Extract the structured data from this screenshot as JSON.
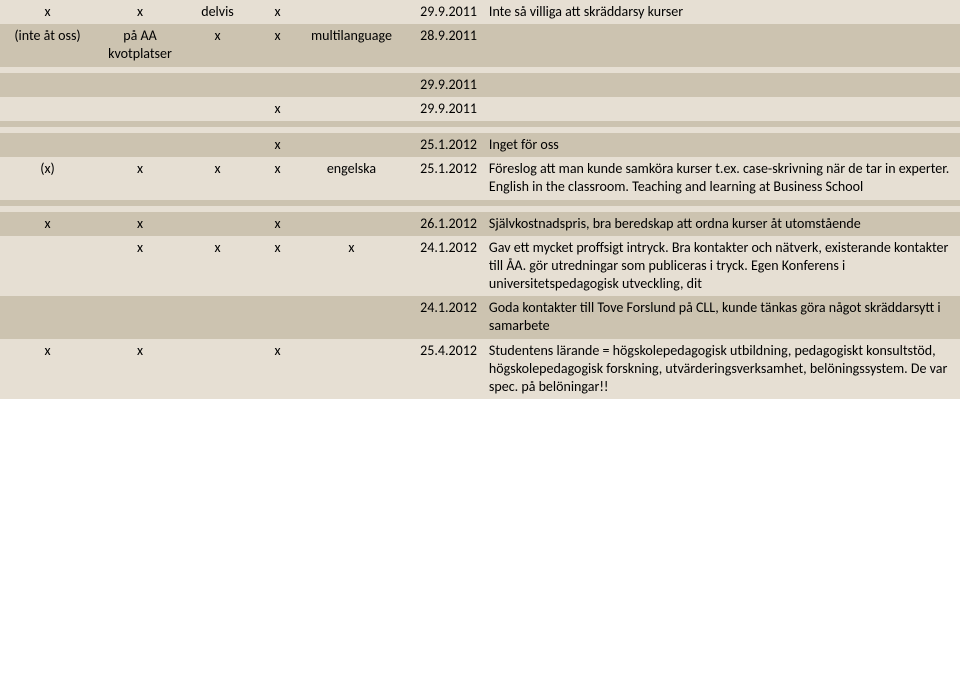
{
  "rows": [
    {
      "parity": "even",
      "c1": "x",
      "c2": "x",
      "c3": "delvis",
      "c4": "x",
      "c5": "",
      "c6": "29.9.2011",
      "c7": "Inte så villiga att skräddarsy kurser"
    },
    {
      "parity": "odd",
      "c1": "(inte åt oss)",
      "c2": "på AA kvotplatser",
      "c3": "x",
      "c4": "x",
      "c5": "multilanguage",
      "c6": "28.9.2011",
      "c7": ""
    },
    {
      "parity": "even",
      "c1": "",
      "c2": "",
      "c3": "",
      "c4": "",
      "c5": "",
      "c6": "",
      "c7": ""
    },
    {
      "parity": "odd",
      "c1": "",
      "c2": "",
      "c3": "",
      "c4": "",
      "c5": "",
      "c6": "29.9.2011",
      "c7": ""
    },
    {
      "parity": "even",
      "c1": "",
      "c2": "",
      "c3": "",
      "c4": "x",
      "c5": "",
      "c6": "29.9.2011",
      "c7": ""
    },
    {
      "parity": "odd",
      "c1": "",
      "c2": "",
      "c3": "",
      "c4": "",
      "c5": "",
      "c6": "",
      "c7": ""
    },
    {
      "parity": "even",
      "c1": "",
      "c2": "",
      "c3": "",
      "c4": "",
      "c5": "",
      "c6": "",
      "c7": ""
    },
    {
      "parity": "odd",
      "c1": "",
      "c2": "",
      "c3": "",
      "c4": "x",
      "c5": "",
      "c6": "25.1.2012",
      "c7": "Inget för oss"
    },
    {
      "parity": "even",
      "c1": "(x)",
      "c2": "x",
      "c3": "x",
      "c4": "x",
      "c5": "engelska",
      "c6": "25.1.2012",
      "c7": "Föreslog att man kunde samköra kurser t.ex. case-skrivning när de tar in experter. English in the classroom. Teaching and learning at Business School"
    },
    {
      "parity": "odd",
      "c1": "",
      "c2": "",
      "c3": "",
      "c4": "",
      "c5": "",
      "c6": "",
      "c7": ""
    },
    {
      "parity": "even",
      "c1": "",
      "c2": "",
      "c3": "",
      "c4": "",
      "c5": "",
      "c6": "",
      "c7": ""
    },
    {
      "parity": "odd",
      "c1": "x",
      "c2": "x",
      "c3": "",
      "c4": "x",
      "c5": "",
      "c6": "26.1.2012",
      "c7": "Självkostnadspris, bra beredskap att ordna kurser åt utomstående"
    },
    {
      "parity": "even",
      "c1": "",
      "c2": "x",
      "c3": "x",
      "c4": "x",
      "c5": "x",
      "c6": "24.1.2012",
      "c7": "Gav ett mycket proffsigt intryck. Bra kontakter och nätverk, existerande kontakter till ÅA. gör utredningar som publiceras i tryck. Egen Konferens i universitetspedagogisk utveckling, dit"
    },
    {
      "parity": "odd",
      "c1": "",
      "c2": "",
      "c3": "",
      "c4": "",
      "c5": "",
      "c6": "24.1.2012",
      "c7": "Goda kontakter till Tove Forslund på CLL, kunde tänkas göra något skräddarsytt i samarbete"
    },
    {
      "parity": "even",
      "c1": "x",
      "c2": "x",
      "c3": "",
      "c4": "x",
      "c5": "",
      "c6": "25.4.2012",
      "c7": "Studentens lärande = högskolepedagogisk utbildning, pedagogiskt konsultstöd, högskolepedagogisk forskning, utvärderingsverksamhet, belöningssystem. De var spec. på belöningar!!"
    }
  ],
  "colAlign": {
    "c1": "center",
    "c2": "center",
    "c3": "center",
    "c4": "center",
    "c5": "center",
    "c6": "right",
    "c7": "left"
  }
}
